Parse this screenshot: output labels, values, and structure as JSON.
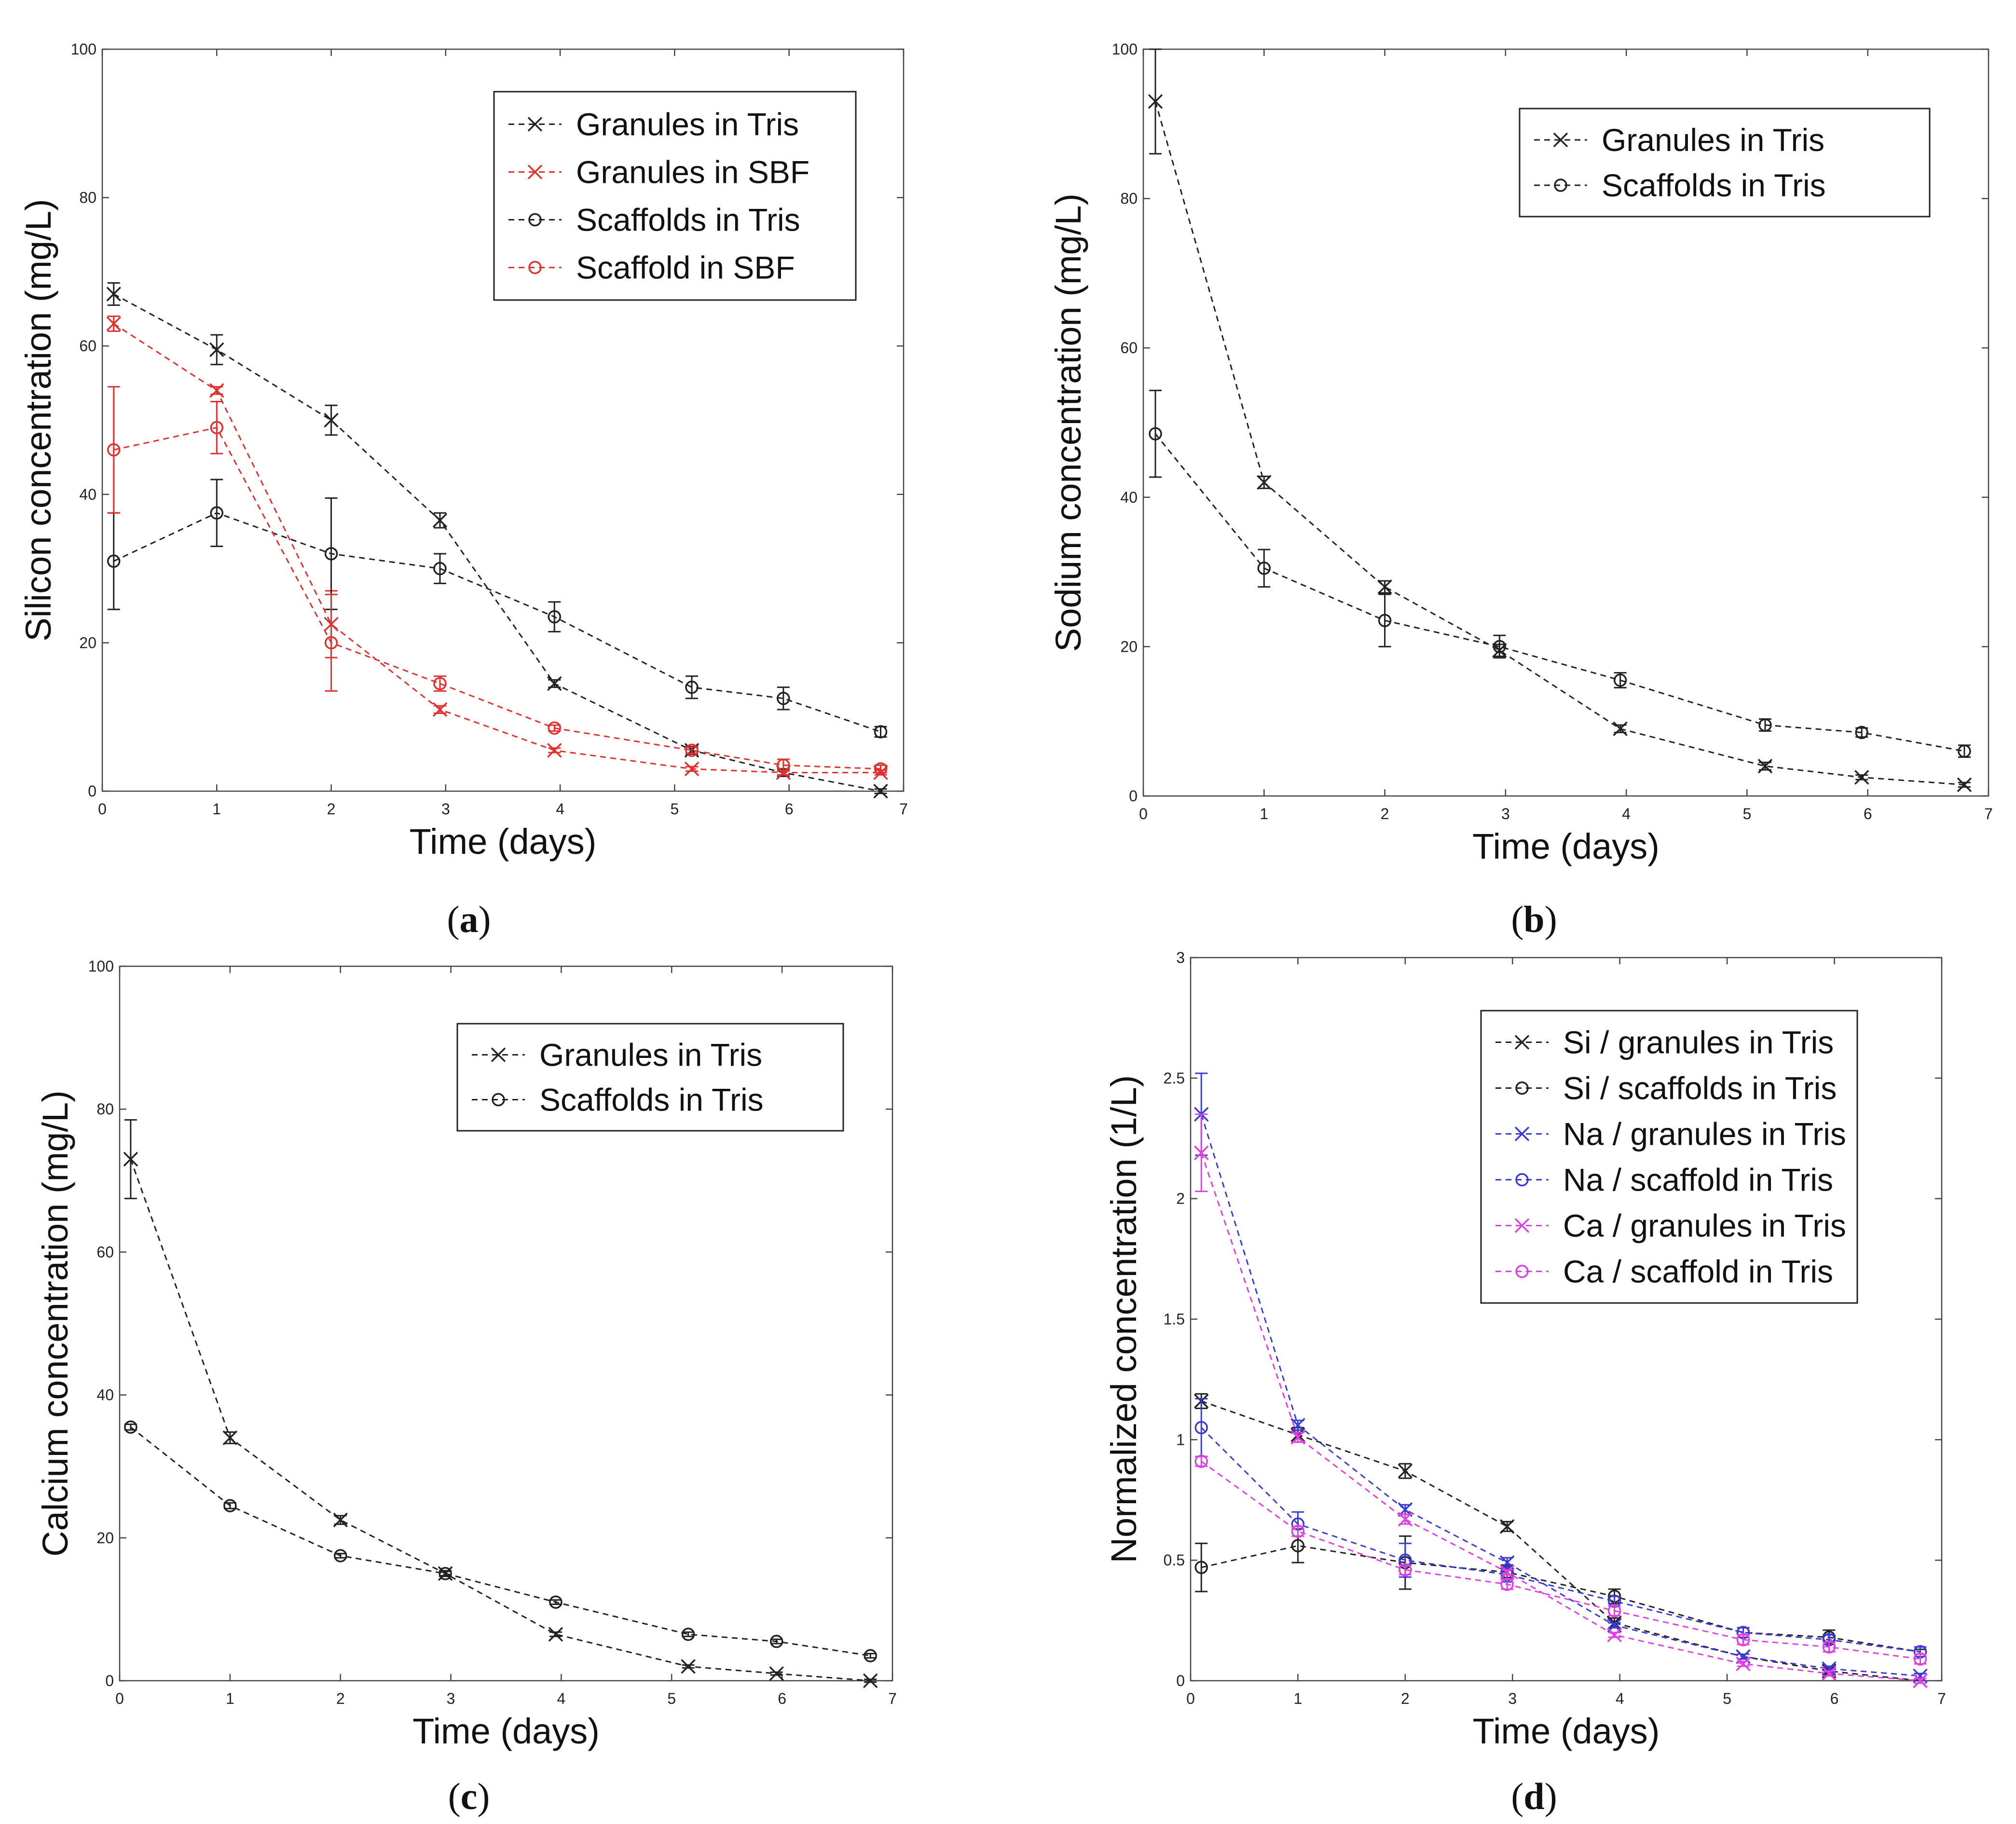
{
  "chart_data": [
    {
      "id": "a",
      "type": "line",
      "caption": "(a)",
      "caption_letter": "a",
      "xlabel": "Time (days)",
      "ylabel": "Silicon concentration (mg/L)",
      "xlim": [
        0,
        7
      ],
      "ylim": [
        0,
        100
      ],
      "xticks": [
        0,
        1,
        2,
        3,
        4,
        5,
        6,
        7
      ],
      "yticks": [
        0,
        20,
        40,
        60,
        80,
        100
      ],
      "legend_position": "top-right",
      "series": [
        {
          "name": "Granules in Tris",
          "marker": "x",
          "color": "#222222",
          "x": [
            0.1,
            1,
            2,
            2.95,
            3.95,
            5.15,
            5.95,
            6.8
          ],
          "y": [
            67,
            59.5,
            50,
            36.5,
            14.5,
            5.5,
            2.5,
            0
          ],
          "err": [
            1.5,
            2,
            2,
            1,
            0.5,
            0.5,
            0.5,
            0.3
          ]
        },
        {
          "name": "Granules in SBF",
          "marker": "x",
          "color": "#e03030",
          "x": [
            0.1,
            1,
            2,
            2.95,
            3.95,
            5.15,
            5.95,
            6.8
          ],
          "y": [
            63,
            54,
            22.5,
            11,
            5.5,
            3,
            2.5,
            2.5
          ],
          "err": [
            1,
            0.5,
            4.5,
            0.5,
            0.3,
            0.3,
            0.3,
            0.3
          ]
        },
        {
          "name": "Scaffolds in Tris",
          "marker": "o",
          "color": "#222222",
          "x": [
            0.1,
            1,
            2,
            2.95,
            3.95,
            5.15,
            5.95,
            6.8
          ],
          "y": [
            31,
            37.5,
            32,
            30,
            23.5,
            14,
            12.5,
            8
          ],
          "err": [
            6.5,
            4.5,
            7.5,
            2,
            2,
            1.5,
            1.5,
            0.7
          ]
        },
        {
          "name": "Scaffold in SBF",
          "marker": "o",
          "color": "#e03030",
          "x": [
            0.1,
            1,
            2,
            2.95,
            3.95,
            5.15,
            5.95,
            6.8
          ],
          "y": [
            46,
            49,
            20,
            14.5,
            8.5,
            5.5,
            3.5,
            3
          ],
          "err": [
            8.5,
            3.5,
            6.5,
            1,
            0.4,
            0.4,
            0.8,
            0.5
          ]
        }
      ]
    },
    {
      "id": "b",
      "type": "line",
      "caption": "(b)",
      "caption_letter": "b",
      "xlabel": "Time (days)",
      "ylabel": "Sodium concentration (mg/L)",
      "xlim": [
        0,
        7
      ],
      "ylim": [
        0,
        100
      ],
      "xticks": [
        0,
        1,
        2,
        3,
        4,
        5,
        6,
        7
      ],
      "yticks": [
        0,
        20,
        40,
        60,
        80,
        100
      ],
      "legend_position": "top-right",
      "series": [
        {
          "name": "Granules in Tris",
          "marker": "x",
          "color": "#222222",
          "x": [
            0.1,
            1,
            2,
            2.95,
            3.95,
            5.15,
            5.95,
            6.8
          ],
          "y": [
            93,
            42,
            28,
            19.5,
            9,
            4,
            2.5,
            1.5
          ],
          "err": [
            7,
            0.8,
            0.8,
            0.8,
            0.5,
            0.5,
            0.3,
            0.3
          ]
        },
        {
          "name": "Scaffolds in Tris",
          "marker": "o",
          "color": "#222222",
          "x": [
            0.1,
            1,
            2,
            2.95,
            3.95,
            5.15,
            5.95,
            6.8
          ],
          "y": [
            48.5,
            30.5,
            23.5,
            20,
            15.5,
            9.5,
            8.5,
            6
          ],
          "err": [
            5.8,
            2.5,
            3.5,
            1.5,
            1,
            0.8,
            0.6,
            0.8
          ]
        }
      ]
    },
    {
      "id": "c",
      "type": "line",
      "caption": "(c)",
      "caption_letter": "c",
      "xlabel": "Time (days)",
      "ylabel": "Calcium concentration (mg/L)",
      "xlim": [
        0,
        7
      ],
      "ylim": [
        0,
        100
      ],
      "xticks": [
        0,
        1,
        2,
        3,
        4,
        5,
        6,
        7
      ],
      "yticks": [
        0,
        20,
        40,
        60,
        80,
        100
      ],
      "legend_position": "top-right",
      "series": [
        {
          "name": "Granules in Tris",
          "marker": "x",
          "color": "#222222",
          "x": [
            0.1,
            1,
            2,
            2.95,
            3.95,
            5.15,
            5.95,
            6.8
          ],
          "y": [
            73,
            34,
            22.5,
            15,
            6.5,
            2,
            1,
            0
          ],
          "err": [
            5.5,
            0.8,
            0.6,
            0.4,
            0.3,
            0.2,
            0.2,
            0.2
          ]
        },
        {
          "name": "Scaffolds in Tris",
          "marker": "o",
          "color": "#222222",
          "x": [
            0.1,
            1,
            2,
            2.95,
            3.95,
            5.15,
            5.95,
            6.8
          ],
          "y": [
            35.5,
            24.5,
            17.5,
            15,
            11,
            6.5,
            5.5,
            3.5
          ],
          "err": [
            0.4,
            0.4,
            0.3,
            0.3,
            0.3,
            0.3,
            0.3,
            0.3
          ]
        }
      ]
    },
    {
      "id": "d",
      "type": "line",
      "caption": "(d)",
      "caption_letter": "d",
      "xlabel": "Time (days)",
      "ylabel": "Normalized concentration (1/L)",
      "xlim": [
        0,
        7
      ],
      "ylim": [
        0,
        3
      ],
      "xticks": [
        0,
        1,
        2,
        3,
        4,
        5,
        6,
        7
      ],
      "yticks": [
        0,
        0.5,
        1,
        1.5,
        2,
        2.5,
        3
      ],
      "legend_position": "top-right",
      "series": [
        {
          "name": "Si / granules in Tris",
          "marker": "x",
          "color": "#222222",
          "x": [
            0.1,
            1,
            2,
            2.95,
            3.95,
            5.15,
            5.95,
            6.8
          ],
          "y": [
            1.16,
            1.02,
            0.87,
            0.64,
            0.24,
            0.1,
            0.04,
            0
          ],
          "err": [
            0.03,
            0.03,
            0.03,
            0.02,
            0.02,
            0.01,
            0.01,
            0.01
          ]
        },
        {
          "name": "Si / scaffolds in Tris",
          "marker": "o",
          "color": "#222222",
          "x": [
            0.1,
            1,
            2,
            2.95,
            3.95,
            5.15,
            5.95,
            6.8
          ],
          "y": [
            0.47,
            0.56,
            0.49,
            0.45,
            0.35,
            0.2,
            0.18,
            0.12
          ],
          "err": [
            0.1,
            0.07,
            0.11,
            0.03,
            0.03,
            0.02,
            0.03,
            0.01
          ]
        },
        {
          "name": "Na / granules in Tris",
          "marker": "x",
          "color": "#3a3ad6",
          "x": [
            0.1,
            1,
            2,
            2.95,
            3.95,
            5.15,
            5.95,
            6.8
          ],
          "y": [
            2.35,
            1.06,
            0.71,
            0.49,
            0.23,
            0.1,
            0.05,
            0.02
          ],
          "err": [
            0.17,
            0.02,
            0.02,
            0.02,
            0.01,
            0.01,
            0.01,
            0.01
          ]
        },
        {
          "name": "Na / scaffold in Tris",
          "marker": "o",
          "color": "#3a3ad6",
          "x": [
            0.1,
            1,
            2,
            2.95,
            3.95,
            5.15,
            5.95,
            6.8
          ],
          "y": [
            1.05,
            0.65,
            0.5,
            0.44,
            0.33,
            0.2,
            0.17,
            0.12
          ],
          "err": [
            0.12,
            0.05,
            0.07,
            0.03,
            0.02,
            0.02,
            0.02,
            0.02
          ]
        },
        {
          "name": "Ca / granules in Tris",
          "marker": "x",
          "color": "#e040e0",
          "x": [
            0.1,
            1,
            2,
            2.95,
            3.95,
            5.15,
            5.95,
            6.8
          ],
          "y": [
            2.19,
            1.01,
            0.67,
            0.45,
            0.19,
            0.07,
            0.03,
            0
          ],
          "err": [
            0.16,
            0.02,
            0.02,
            0.01,
            0.01,
            0.01,
            0.01,
            0.01
          ]
        },
        {
          "name": "Ca / scaffold in Tris",
          "marker": "o",
          "color": "#e040e0",
          "x": [
            0.1,
            1,
            2,
            2.95,
            3.95,
            5.15,
            5.95,
            6.8
          ],
          "y": [
            0.91,
            0.62,
            0.46,
            0.4,
            0.29,
            0.17,
            0.14,
            0.09
          ],
          "err": [
            0.02,
            0.02,
            0.02,
            0.02,
            0.02,
            0.02,
            0.02,
            0.02
          ]
        }
      ]
    }
  ]
}
